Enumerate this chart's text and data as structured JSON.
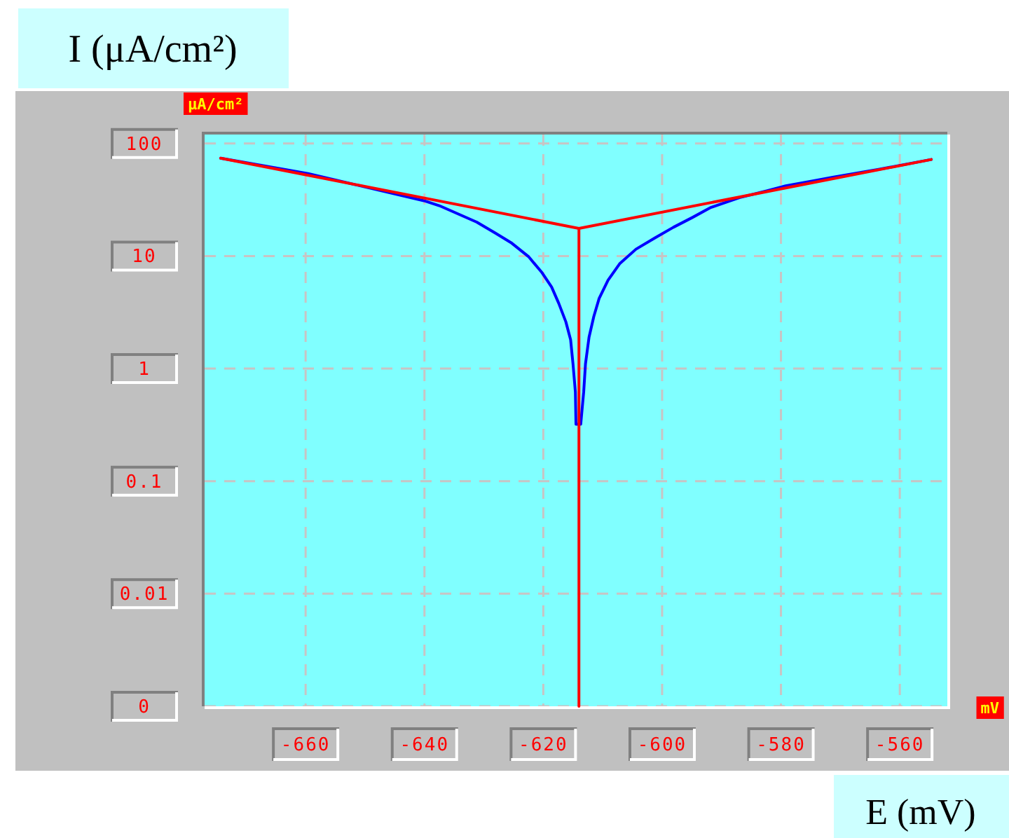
{
  "chart_data": {
    "type": "line",
    "xlabel": "E (mV)",
    "ylabel": "I (μA/cm²)",
    "annotations": [
      "μA/cm²",
      "mV"
    ],
    "log": true,
    "grid": true,
    "xlim": [
      -677,
      -552
    ],
    "xticks": [
      -660,
      -640,
      -620,
      -600,
      -580,
      -560
    ],
    "ylim": [
      0.001,
      120
    ],
    "yticks": [
      {
        "value": 0.001,
        "label": "0"
      },
      0.01,
      0.1,
      1,
      10,
      100
    ],
    "series": [
      {
        "color": "#0000ff",
        "x": [
          -674.3,
          -659.6,
          -640.1,
          -637.5,
          -631.2,
          -628.1,
          -625.3,
          -622.5,
          -620.2,
          -618.6,
          -617.4,
          -616.2,
          -615.4,
          -615.0,
          -614.6,
          -614.5,
          -613.7,
          -613.2,
          -612.9,
          -612.3,
          -611.5,
          -610.6,
          -609.1,
          -607.1,
          -604.4,
          -601.2,
          -598.1,
          -594.9,
          -591.8,
          -587.0,
          -582.3,
          -579.2,
          -571.3,
          -563.4,
          -554.7
        ],
        "values": [
          74,
          54,
          31,
          28,
          20,
          16,
          13,
          9.9,
          7.1,
          5.3,
          3.8,
          2.6,
          1.8,
          1.1,
          0.62,
          0.32,
          0.32,
          0.62,
          1.1,
          1.9,
          2.9,
          4.2,
          6.1,
          8.6,
          11.5,
          14.5,
          18,
          22,
          27,
          33,
          38,
          42,
          50,
          59,
          72
        ]
      },
      {
        "color": "#ff0000",
        "x": [
          -674.3,
          -614,
          -554.7
        ],
        "values": [
          74,
          17.6,
          72
        ]
      },
      {
        "color": "#ff0000",
        "x": [
          -614,
          -614
        ],
        "values": [
          17.6,
          0.001
        ]
      }
    ]
  }
}
